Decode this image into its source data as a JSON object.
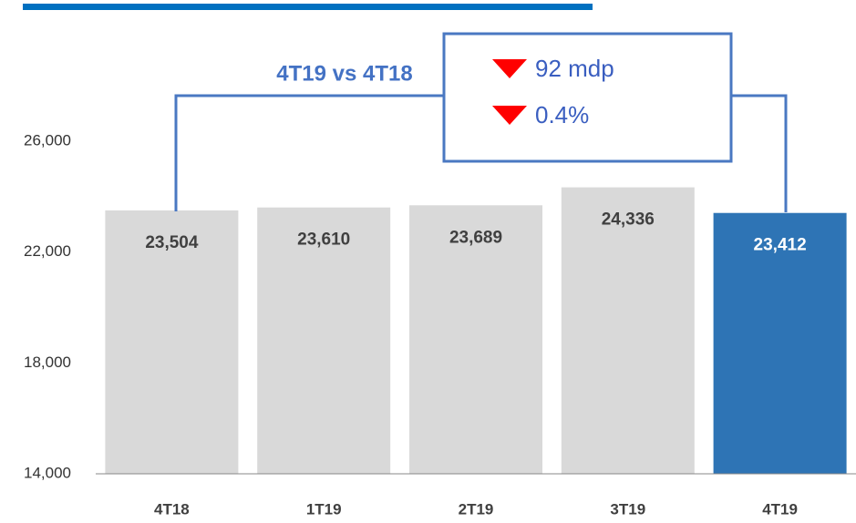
{
  "chart_data": {
    "type": "bar",
    "categories": [
      "4T18",
      "1T19",
      "2T19",
      "3T19",
      "4T19"
    ],
    "values": [
      23504,
      23610,
      23689,
      24336,
      23412
    ],
    "value_labels": [
      "23,504",
      "23,610",
      "23,689",
      "24,336",
      "23,412"
    ],
    "colors": [
      "#d9d9d9",
      "#d9d9d9",
      "#d9d9d9",
      "#d9d9d9",
      "#2e74b5"
    ],
    "ylim": [
      14000,
      26000
    ],
    "yticks": [
      {
        "value": 14000,
        "label": "14,000"
      },
      {
        "value": 18000,
        "label": "18,000"
      },
      {
        "value": 22000,
        "label": "22,000"
      },
      {
        "value": 26000,
        "label": "26,000"
      }
    ],
    "grid": false,
    "annotations": [
      "4T19 vs 4T18",
      "92 mdp",
      "0.4%"
    ]
  }
}
